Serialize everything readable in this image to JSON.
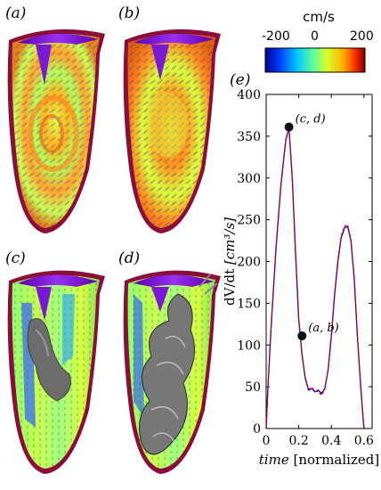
{
  "figure": {
    "panel_labels": [
      "(a)",
      "(b)",
      "(c)",
      "(d)",
      "(e)"
    ]
  },
  "colorbar": {
    "title": "cm/s",
    "ticks": [
      "-200",
      "0",
      "200"
    ],
    "colors": [
      "#000090",
      "#0040ff",
      "#00c8ff",
      "#60ff9f",
      "#d8ff28",
      "#ffb000",
      "#ff3000",
      "#800000"
    ]
  },
  "chart_data": {
    "type": "line",
    "title": "",
    "xlabel_italic": "time",
    "xlabel_rest": " [normalized]",
    "ylabel_main": "dV/dt ",
    "ylabel_unit": "[cm³/s]",
    "xlim": [
      0,
      0.65
    ],
    "ylim": [
      0,
      400
    ],
    "xticks": [
      "0",
      "0.2",
      "0.4",
      "0.6"
    ],
    "xtick_values": [
      0,
      0.2,
      0.4,
      0.6
    ],
    "yticks": [
      "0",
      "50",
      "100",
      "150",
      "200",
      "250",
      "300",
      "350",
      "400"
    ],
    "ytick_values": [
      0,
      50,
      100,
      150,
      200,
      250,
      300,
      350,
      400
    ],
    "series": [
      {
        "color": "#0000cc",
        "x": [
          0,
          0.01,
          0.03,
          0.06,
          0.09,
          0.12,
          0.14,
          0.16,
          0.18,
          0.2,
          0.22,
          0.24,
          0.26,
          0.28,
          0.3,
          0.32,
          0.34,
          0.36,
          0.38,
          0.4,
          0.42,
          0.44,
          0.46,
          0.48,
          0.5,
          0.52,
          0.54,
          0.56,
          0.58,
          0.6
        ],
        "y": [
          0,
          45,
          120,
          215,
          290,
          345,
          360,
          300,
          210,
          130,
          88,
          60,
          46,
          48,
          44,
          46,
          42,
          48,
          70,
          110,
          160,
          200,
          228,
          240,
          242,
          225,
          180,
          110,
          50,
          0
        ]
      },
      {
        "color": "#dd0000",
        "x": [
          0,
          0.01,
          0.03,
          0.06,
          0.09,
          0.12,
          0.14,
          0.16,
          0.18,
          0.2,
          0.22,
          0.24,
          0.26,
          0.28,
          0.3,
          0.32,
          0.34,
          0.36,
          0.38,
          0.4,
          0.42,
          0.44,
          0.46,
          0.48,
          0.5,
          0.52,
          0.54,
          0.56,
          0.58,
          0.6
        ],
        "y": [
          0,
          46,
          122,
          216,
          292,
          346,
          361,
          301,
          211,
          131,
          89,
          61,
          47,
          49,
          45,
          44,
          40,
          47,
          71,
          112,
          162,
          202,
          230,
          242,
          244,
          226,
          181,
          111,
          51,
          0
        ]
      }
    ],
    "points": [
      {
        "label": "(c, d)",
        "x": 0.14,
        "y": 361
      },
      {
        "label": "(a, b)",
        "x": 0.22,
        "y": 111
      }
    ]
  }
}
